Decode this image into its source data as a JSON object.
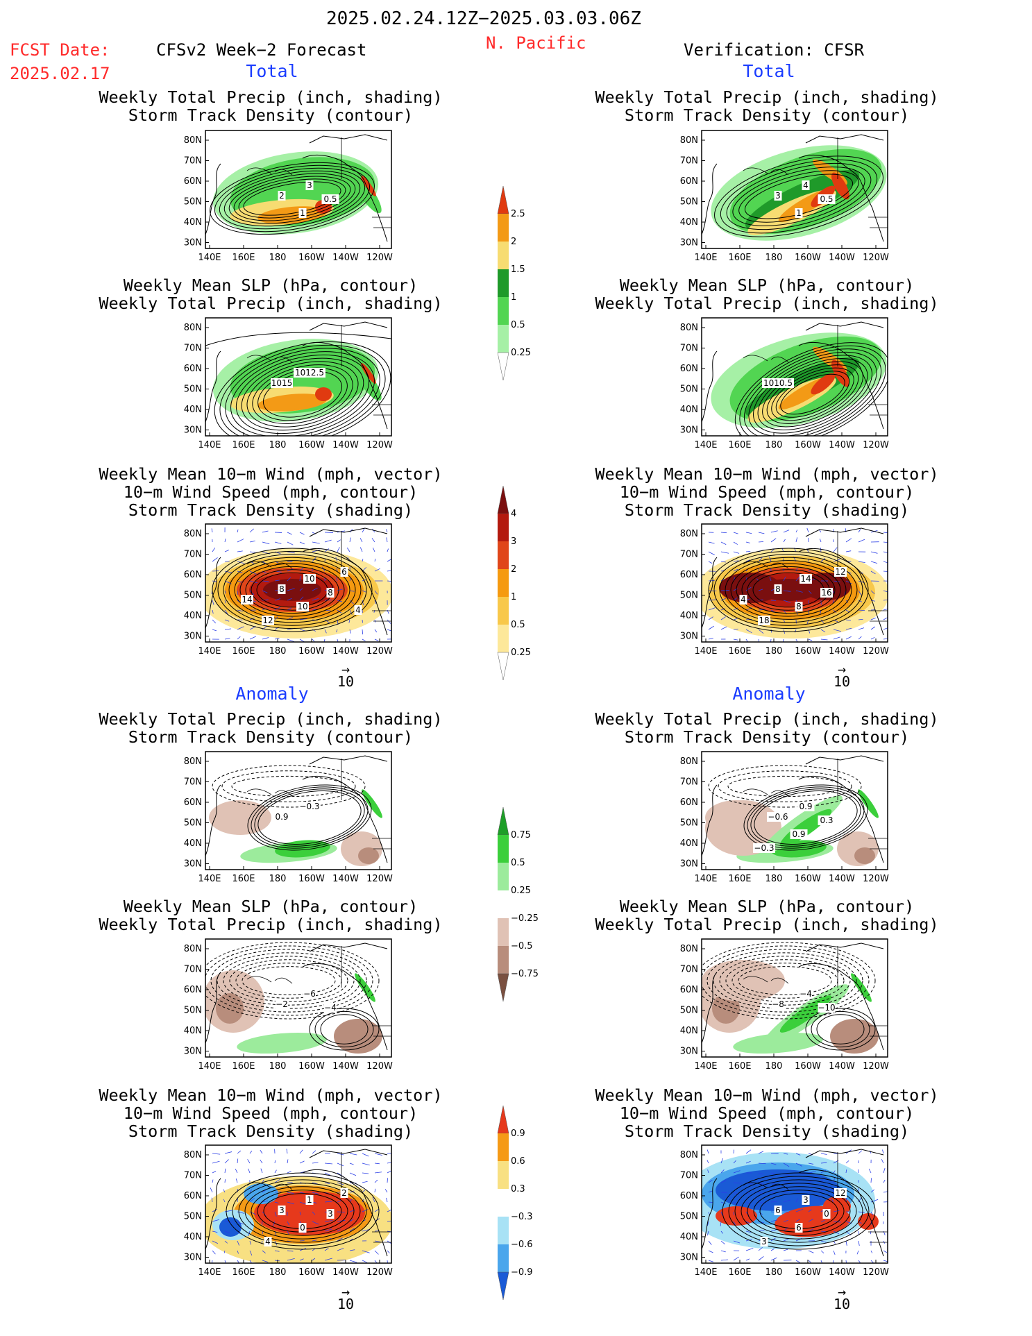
{
  "header": {
    "title": "2025.02.24.12Z−2025.03.03.06Z",
    "region": "N. Pacific",
    "fcst_label": "FCST Date:",
    "fcst_date": "2025.02.17",
    "left_heading": "CFSv2 Week−2 Forecast",
    "right_heading": "Verification: CFSR"
  },
  "sections": {
    "total": "Total",
    "anomaly": "Anomaly"
  },
  "titles": {
    "precip_track": [
      "Weekly Total Precip (inch, shading)",
      "Storm Track Density (contour)"
    ],
    "slp_precip": [
      "Weekly Mean SLP (hPa, contour)",
      "Weekly Total Precip (inch, shading)"
    ],
    "wind_track": [
      "Weekly Mean 10−m Wind (mph, vector)",
      "10−m Wind Speed (mph, contour)",
      "Storm Track Density (shading)"
    ]
  },
  "axes": {
    "lat_labels": [
      "80N",
      "70N",
      "60N",
      "50N",
      "40N",
      "30N"
    ],
    "lon_labels": [
      "140E",
      "160E",
      "180",
      "160W",
      "140W",
      "120W"
    ]
  },
  "vector_ref": "10",
  "colorbars": {
    "precip_total": {
      "labels": [
        "2.5",
        "2",
        "1.5",
        "1",
        "0.5",
        "0.25"
      ],
      "colors": [
        "#e03a10",
        "#f39a16",
        "#f7dc72",
        "#1f9a2a",
        "#52d552",
        "#a6f0a6",
        "#ffffff"
      ]
    },
    "track_total": {
      "labels": [
        "4",
        "3",
        "2",
        "1",
        "0.5",
        "0.25"
      ],
      "colors": [
        "#7a0f0f",
        "#b31a0f",
        "#e0461a",
        "#f59a10",
        "#f8c84a",
        "#fde89a",
        "#ffffff"
      ]
    },
    "precip_anom": {
      "labels": [
        "0.75",
        "0.5",
        "0.25",
        "−0.25",
        "−0.5",
        "−0.75"
      ],
      "colors": [
        "#1e9e28",
        "#3bcf3b",
        "#9ceb9c",
        "#ffffff",
        "#e0c2b5",
        "#b88d7c",
        "#7a5040"
      ]
    },
    "track_anom": {
      "labels": [
        "0.9",
        "0.6",
        "0.3",
        "−0.3",
        "−0.6",
        "−0.9"
      ],
      "colors": [
        "#e6391c",
        "#f59a16",
        "#f8e082",
        "#ffffff",
        "#a8e2f5",
        "#4aa6ec",
        "#1a5ad6"
      ]
    },
    "label_fontsize_px": 13
  },
  "panel_labels": {
    "left_precip_total": [
      "2",
      "3",
      "0.5",
      "1"
    ],
    "left_slp_total": [
      "1015",
      "1012.5"
    ],
    "left_wind_total": [
      "8",
      "10",
      "8",
      "10",
      "12",
      "6",
      "14",
      "4"
    ],
    "right_precip_total": [
      "3",
      "4",
      "0.5",
      "1"
    ],
    "right_slp_total": [
      "1010.5"
    ],
    "right_wind_total": [
      "8",
      "14",
      "16",
      "8",
      "18",
      "12",
      "4"
    ],
    "left_precip_anom": [
      "0.9",
      "−0.3"
    ],
    "left_slp_anom": [
      "−2",
      "−6",
      "−4"
    ],
    "left_wind_anom": [
      "3",
      "1",
      "3",
      "0",
      "4",
      "2"
    ],
    "right_precip_anom": [
      "−0.6",
      "0.9",
      "0.3",
      "0.9",
      "−0.3"
    ],
    "right_slp_anom": [
      "−8",
      "−4",
      "−10"
    ],
    "right_wind_anom": [
      "6",
      "3",
      "0",
      "6",
      "3",
      "12"
    ]
  }
}
